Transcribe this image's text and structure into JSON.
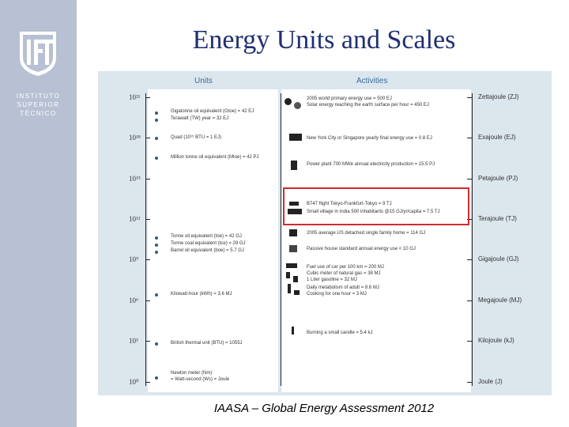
{
  "sidebar": {
    "logo_mark": "IST",
    "logo_lines": [
      "INSTITUTO",
      "SUPERIOR",
      "TÉCNICO"
    ]
  },
  "title": "Energy Units and Scales",
  "caption": "IAASA – Global Energy Assessment 2012",
  "figure": {
    "units_header": "Units",
    "activities_header": "Activities",
    "y_ticks": [
      "10²¹",
      "10¹⁸",
      "10¹⁵",
      "10¹²",
      "10⁹",
      "10⁶",
      "10³",
      "10⁰"
    ],
    "units": [
      {
        "text": "Gigatonne oil equivalent (Gtoe) = 42 EJ"
      },
      {
        "text": "Terawatt (TW) year = 32 EJ"
      },
      {
        "text": "Quad (10¹⁵ BTU = 1 EJ)"
      },
      {
        "text": "Million tonne oil equivalent (Mtoe) = 42 PJ"
      },
      {
        "text": "Tonne oil equivalent (toe) = 42 GJ"
      },
      {
        "text": "Tonne coal equivalent (tce) = 29 GJ"
      },
      {
        "text": "Barrel oil equivalent (boe) = 5.7 GJ"
      },
      {
        "text": "Kilowatt-hour (kWh) = 3.6 MJ"
      },
      {
        "text": "British thermal unit (BTU) = 1055J"
      },
      {
        "text": "Newton meter (Nm)"
      },
      {
        "text": "= Watt-second (Ws) = Joule"
      }
    ],
    "activities": [
      {
        "text": "2005 world primary energy use = 500 EJ",
        "icon": "globe-icon"
      },
      {
        "text": "Solar energy reaching the earth surface per hour = 450 EJ",
        "icon": "sun-icon"
      },
      {
        "text": "New York City or Singapore yearly final energy use = 0.8 EJ",
        "icon": "city-skyline-icon"
      },
      {
        "text": "Power plant 700 MWe annual electricity production = 15.5 PJ",
        "icon": "power-plant-icon"
      },
      {
        "text": "B747 flight Tokyo-Frankfurt-Tokyo = 9 TJ",
        "icon": "airplane-icon"
      },
      {
        "text": "Small village in India 500 inhabitants @15 GJ/yr/capita = 7.5 TJ",
        "icon": "village-icon"
      },
      {
        "text": "2005 average US detached single family home = 114 GJ",
        "icon": "house-icon"
      },
      {
        "text": "Passive house standard annual energy use < 10 GJ",
        "icon": "passive-house-icon"
      },
      {
        "text": "Fuel use of car per 100 km = 200 MJ",
        "icon": "car-icon"
      },
      {
        "text": "Cubic meter of natural gas = 38 MJ",
        "icon": "gas-flame-icon"
      },
      {
        "text": "1 Liter gasoline = 32 MJ",
        "icon": "fuel-can-icon"
      },
      {
        "text": "Daily metabolism of adult = 8.6 MJ",
        "icon": "person-icon"
      },
      {
        "text": "Cooking for one hour = 3 MJ",
        "icon": "cooking-pot-icon"
      },
      {
        "text": "Burning a small candle = 5.4 kJ",
        "icon": "candle-icon"
      }
    ],
    "right_units": [
      "Zettajoule (ZJ)",
      "Exajoule (EJ)",
      "Petajoule (PJ)",
      "Terajoule (TJ)",
      "Gigajoule (GJ)",
      "Megajoule (MJ)",
      "Kilojoule (kJ)",
      "Joule (J)"
    ]
  }
}
